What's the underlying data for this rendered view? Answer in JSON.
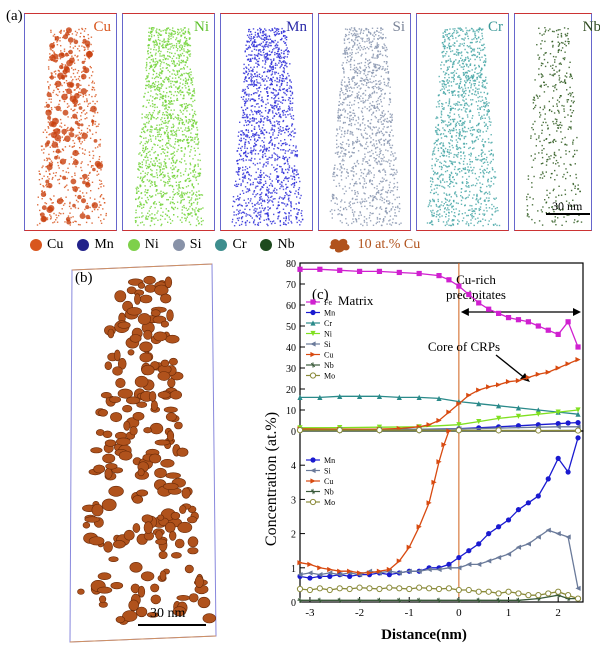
{
  "panel_labels": {
    "a": "(a)",
    "b": "(b)",
    "c": "(c)"
  },
  "atom_maps": [
    {
      "element": "Cu",
      "color": "#d8561e",
      "label_color": "#d8561e"
    },
    {
      "element": "Ni",
      "color": "#73d43a",
      "label_color": "#5cc02a"
    },
    {
      "element": "Mn",
      "color": "#2e2ed8",
      "label_color": "#2a2aa8"
    },
    {
      "element": "Si",
      "color": "#8a96b0",
      "label_color": "#7a8498"
    },
    {
      "element": "Cr",
      "color": "#4aa8a8",
      "label_color": "#3a9898"
    },
    {
      "element": "Nb",
      "color": "#2e5a1e",
      "label_color": "#2e4a1e"
    }
  ],
  "scale_bar_a": "30 nm",
  "scale_bar_b": "30 nm",
  "atom_legend": [
    {
      "label": "Cu",
      "color": "#d8561e"
    },
    {
      "label": "Mn",
      "color": "#22228a"
    },
    {
      "label": "Ni",
      "color": "#7ed04a"
    },
    {
      "label": "Si",
      "color": "#8892a8"
    },
    {
      "label": "Cr",
      "color": "#3e8e8e"
    },
    {
      "label": "Nb",
      "color": "#1e4a1e"
    }
  ],
  "iso_legend": "10 at.% Cu",
  "iso_color": "#b0521c",
  "chart_data": [
    {
      "type": "line",
      "panel": "top",
      "ylim": [
        0,
        80
      ],
      "yticks": [
        0,
        10,
        20,
        30,
        40,
        50,
        60,
        70,
        80
      ],
      "annotations": {
        "matrix": "Matrix",
        "crp_line1": "Cu-rich",
        "crp_line2": "precipitates",
        "core": "Core of CRPs"
      },
      "series": [
        {
          "name": "Fe",
          "color": "#d020d0",
          "marker": "square",
          "x": [
            -3.2,
            -2.8,
            -2.4,
            -2.0,
            -1.6,
            -1.2,
            -0.8,
            -0.4,
            -0.2,
            0.0,
            0.2,
            0.4,
            0.6,
            0.8,
            1.0,
            1.2,
            1.4,
            1.6,
            1.8,
            2.0,
            2.2,
            2.4
          ],
          "y": [
            77,
            77,
            76.5,
            76,
            76,
            75.5,
            75,
            74,
            72,
            69,
            65,
            61,
            58,
            56,
            54,
            53,
            52,
            50,
            48,
            46,
            52,
            40
          ]
        },
        {
          "name": "Mn",
          "color": "#1a1ad0",
          "marker": "circle",
          "x": [
            -3.2,
            -2.4,
            -1.6,
            -0.8,
            0.0,
            0.4,
            0.8,
            1.2,
            1.6,
            2.0,
            2.2,
            2.4
          ],
          "y": [
            0.8,
            0.8,
            0.8,
            0.8,
            1.1,
            1.5,
            2.0,
            2.5,
            3.0,
            3.5,
            3.8,
            4.0
          ]
        },
        {
          "name": "Cr",
          "color": "#2a8a8a",
          "marker": "triangle",
          "x": [
            -3.2,
            -2.8,
            -2.4,
            -2.0,
            -1.6,
            -1.2,
            -0.8,
            -0.4,
            0.0,
            0.4,
            0.8,
            1.2,
            1.6,
            2.0,
            2.4
          ],
          "y": [
            16,
            16,
            16.5,
            16.5,
            16.5,
            16,
            16,
            15.5,
            14,
            13,
            12,
            11,
            10,
            9,
            8
          ]
        },
        {
          "name": "Ni",
          "color": "#80e020",
          "marker": "triangle-down",
          "x": [
            -3.2,
            -2.4,
            -1.6,
            -0.8,
            0.0,
            0.4,
            0.8,
            1.2,
            1.6,
            2.0,
            2.4
          ],
          "y": [
            1.5,
            1.6,
            1.8,
            2.0,
            3.0,
            4.5,
            6.0,
            7.0,
            8.0,
            9.0,
            10.0
          ]
        },
        {
          "name": "Si",
          "color": "#6a7a9a",
          "marker": "triangle-left",
          "x": [
            -3.2,
            -2.4,
            -1.6,
            -0.8,
            0.0,
            0.8,
            1.6,
            2.0,
            2.4
          ],
          "y": [
            0.7,
            0.8,
            0.8,
            0.9,
            1.0,
            1.4,
            1.8,
            2.0,
            2.0
          ]
        },
        {
          "name": "Cu",
          "color": "#d84a10",
          "marker": "triangle-right",
          "x": [
            -3.2,
            -2.4,
            -1.6,
            -1.2,
            -0.8,
            -0.6,
            -0.4,
            -0.2,
            0.0,
            0.2,
            0.4,
            0.6,
            0.8,
            1.0,
            1.2,
            1.4,
            1.6,
            1.8,
            2.0,
            2.2,
            2.4
          ],
          "y": [
            1.0,
            0.9,
            0.9,
            1.2,
            2.0,
            3.0,
            5.0,
            9.0,
            13.0,
            17.0,
            19.5,
            21.0,
            22.0,
            23.5,
            24.0,
            25.5,
            27.0,
            28.0,
            30.0,
            32.0,
            34.0
          ]
        },
        {
          "name": "Nb",
          "color": "#3a5a3a",
          "marker": "star",
          "x": [
            -3.2,
            -2.4,
            -1.6,
            -0.8,
            0.0,
            0.8,
            1.6,
            2.4
          ],
          "y": [
            0.05,
            0.05,
            0.05,
            0.05,
            0.1,
            0.1,
            0.2,
            0.3
          ]
        },
        {
          "name": "Mo",
          "color": "#8a8a3a",
          "marker": "circle-open",
          "x": [
            -3.2,
            -2.4,
            -1.6,
            -0.8,
            0.0,
            0.8,
            1.6,
            2.4
          ],
          "y": [
            0.4,
            0.4,
            0.4,
            0.4,
            0.35,
            0.3,
            0.25,
            0.2
          ]
        }
      ]
    },
    {
      "type": "line",
      "panel": "bottom",
      "ylim": [
        0,
        5
      ],
      "yticks": [
        0,
        1,
        2,
        3,
        4,
        5
      ],
      "xlim": [
        -3.2,
        2.5
      ],
      "xticks": [
        -3,
        -2,
        -1,
        0,
        1,
        2
      ],
      "xlabel": "Distance(nm)",
      "ylabel": "Concentration (at.%)",
      "series": [
        {
          "name": "Mn",
          "color": "#1a1ad0",
          "marker": "circle",
          "x": [
            -3.2,
            -3.0,
            -2.8,
            -2.6,
            -2.4,
            -2.2,
            -2.0,
            -1.8,
            -1.6,
            -1.4,
            -1.2,
            -1.0,
            -0.8,
            -0.6,
            -0.4,
            -0.2,
            0.0,
            0.2,
            0.4,
            0.6,
            0.8,
            1.0,
            1.2,
            1.4,
            1.6,
            1.8,
            2.0,
            2.2,
            2.4
          ],
          "y": [
            0.75,
            0.7,
            0.75,
            0.75,
            0.8,
            0.75,
            0.8,
            0.8,
            0.85,
            0.8,
            0.85,
            0.9,
            0.9,
            1.0,
            1.0,
            1.1,
            1.3,
            1.5,
            1.7,
            2.0,
            2.2,
            2.4,
            2.7,
            2.9,
            3.1,
            3.6,
            4.2,
            3.8,
            4.8
          ]
        },
        {
          "name": "Si",
          "color": "#6a7a9a",
          "marker": "triangle-left",
          "x": [
            -3.2,
            -3.0,
            -2.8,
            -2.6,
            -2.4,
            -2.2,
            -2.0,
            -1.8,
            -1.6,
            -1.4,
            -1.2,
            -1.0,
            -0.8,
            -0.6,
            -0.4,
            -0.2,
            0.0,
            0.2,
            0.4,
            0.6,
            0.8,
            1.0,
            1.2,
            1.4,
            1.6,
            1.8,
            2.0,
            2.2,
            2.4
          ],
          "y": [
            0.8,
            0.85,
            0.8,
            0.85,
            0.8,
            0.85,
            0.8,
            0.9,
            0.85,
            0.9,
            0.85,
            0.9,
            0.9,
            0.95,
            0.95,
            1.0,
            1.0,
            1.1,
            1.1,
            1.2,
            1.3,
            1.4,
            1.6,
            1.7,
            1.9,
            2.1,
            2.0,
            1.9,
            0.4
          ]
        },
        {
          "name": "Cu",
          "color": "#d84a10",
          "marker": "triangle-right",
          "x": [
            -3.2,
            -3.0,
            -2.8,
            -2.6,
            -2.4,
            -2.2,
            -2.0,
            -1.8,
            -1.6,
            -1.4,
            -1.2,
            -1.0,
            -0.8,
            -0.6,
            -0.5,
            -0.4,
            -0.3,
            -0.2
          ],
          "y": [
            1.15,
            1.1,
            1.0,
            0.95,
            0.9,
            0.9,
            0.85,
            0.85,
            0.9,
            0.95,
            1.2,
            1.6,
            2.2,
            2.9,
            3.5,
            4.1,
            4.6,
            5.0
          ]
        },
        {
          "name": "Nb",
          "color": "#3a5a3a",
          "marker": "star",
          "x": [
            -3.2,
            -2.8,
            -2.4,
            -2.0,
            -1.6,
            -1.2,
            -0.8,
            -0.4,
            0.0,
            0.4,
            0.8,
            1.2,
            1.6,
            2.0,
            2.2,
            2.4
          ],
          "y": [
            0.05,
            0.05,
            0.05,
            0.05,
            0.05,
            0.05,
            0.05,
            0.05,
            0.05,
            0.05,
            0.05,
            0.05,
            0.1,
            0.2,
            0.1,
            0.1
          ]
        },
        {
          "name": "Mo",
          "color": "#8a8a3a",
          "marker": "circle-open",
          "x": [
            -3.2,
            -3.0,
            -2.8,
            -2.6,
            -2.4,
            -2.2,
            -2.0,
            -1.8,
            -1.6,
            -1.4,
            -1.2,
            -1.0,
            -0.8,
            -0.6,
            -0.4,
            -0.2,
            0.0,
            0.2,
            0.4,
            0.6,
            0.8,
            1.0,
            1.2,
            1.4,
            1.6,
            1.8,
            2.0,
            2.2,
            2.4
          ],
          "y": [
            0.38,
            0.35,
            0.4,
            0.35,
            0.4,
            0.38,
            0.42,
            0.4,
            0.38,
            0.42,
            0.4,
            0.38,
            0.42,
            0.4,
            0.38,
            0.4,
            0.35,
            0.35,
            0.3,
            0.3,
            0.25,
            0.3,
            0.25,
            0.2,
            0.2,
            0.25,
            0.3,
            0.2,
            0.1
          ]
        }
      ]
    }
  ]
}
